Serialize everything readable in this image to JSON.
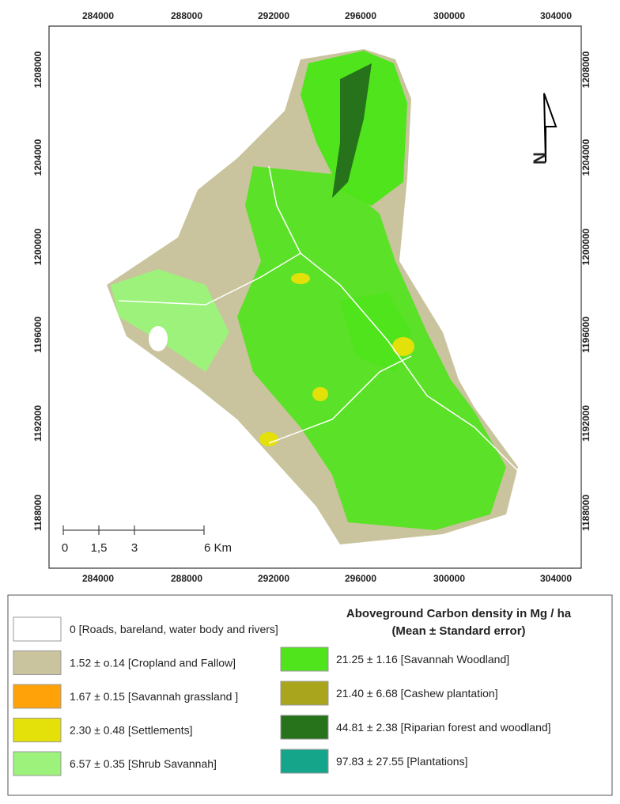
{
  "map": {
    "x_ticks": [
      "284000",
      "288000",
      "292000",
      "296000",
      "300000",
      "304000"
    ],
    "y_ticks": [
      "1208000",
      "1204000",
      "1200000",
      "1196000",
      "1192000",
      "1188000"
    ],
    "scale_labels": [
      "0",
      "1,5",
      "3",
      "6 Km"
    ]
  },
  "legend": {
    "title": [
      "Aboveground Carbon density in Mg / ha",
      "(Mean ± Standard error)"
    ],
    "left": [
      {
        "label": "0 [Roads, bareland, water body and rivers]",
        "color": "#ffffff"
      },
      {
        "label": "1.52 ± o.14 [Cropland and Fallow]",
        "color": "#c9c49d"
      },
      {
        "label": "1.67 ± 0.15 [Savannah grassland ]",
        "color": "#ffa20a"
      },
      {
        "label": "2.30 ± 0.48 [Settlements]",
        "color": "#e3e00a"
      },
      {
        "label": "6.57 ± 0.35 [Shrub Savannah]",
        "color": "#9cf27b"
      }
    ],
    "right": [
      {
        "label": "21.25 ± 1.16 [Savannah Woodland]",
        "color": "#4fe41b"
      },
      {
        "label": "21.40 ± 6.68 [Cashew plantation]",
        "color": "#a9a51c"
      },
      {
        "label": "44.81 ± 2.38 [Riparian forest and woodland]",
        "color": "#26731b"
      },
      {
        "label": "97.83 ± 27.55 [Plantations]",
        "color": "#14a58b"
      }
    ]
  }
}
